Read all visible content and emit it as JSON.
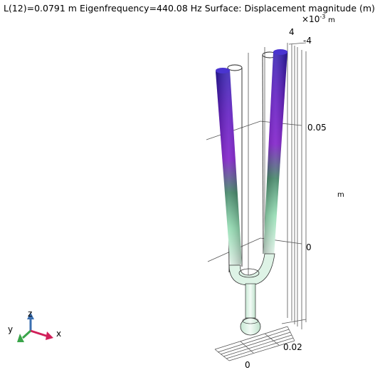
{
  "plot": {
    "title": "L(12)=0.0791 m Eigenfrequency=440.08 Hz  Surface: Displacement magnitude (m)",
    "scale_prefix": "×10",
    "scale_exponent": "-3",
    "scale_unit": "m",
    "colorbar_max": "4",
    "colorbar_min": "-4",
    "colors": {
      "high": "#2d1ab0",
      "mid_high": "#7a14c8",
      "mid": "#3a8060",
      "low": "#e8f7ee"
    }
  },
  "axes": {
    "z_tick_top": "0.05",
    "z_tick_bottom": "0",
    "unit": "m",
    "y_tick": "0.02",
    "x_tick": "0"
  },
  "triad": {
    "x": "x",
    "y": "y",
    "z": "z"
  }
}
